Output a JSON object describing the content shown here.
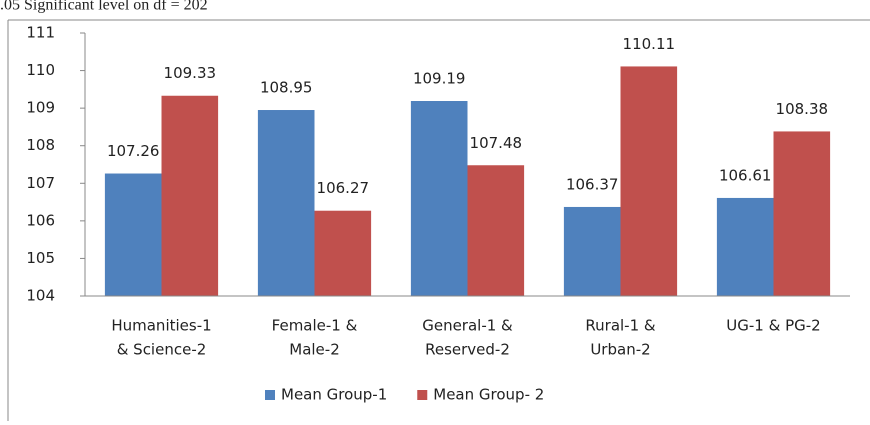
{
  "chart_data": {
    "type": "bar",
    "note": ".05 Significant level on df = 202",
    "categories": [
      [
        "Humanities-1",
        "& Science-2"
      ],
      [
        "Female-1 &",
        "Male-2"
      ],
      [
        "General-1 &",
        "Reserved-2"
      ],
      [
        "Rural-1 &",
        "Urban-2"
      ],
      [
        "UG-1 & PG-2"
      ]
    ],
    "series": [
      {
        "name": "Mean Group-1",
        "color": "#4f81bd",
        "values": [
          107.26,
          108.95,
          109.19,
          106.37,
          106.61
        ]
      },
      {
        "name": "Mean Group- 2",
        "color": "#c0504d",
        "values": [
          109.33,
          106.27,
          107.48,
          110.11,
          108.38
        ]
      }
    ],
    "ylim": [
      104,
      111
    ],
    "yticks": [
      104,
      105,
      106,
      107,
      108,
      109,
      110,
      111
    ],
    "grid": false,
    "legend": "bottom"
  }
}
